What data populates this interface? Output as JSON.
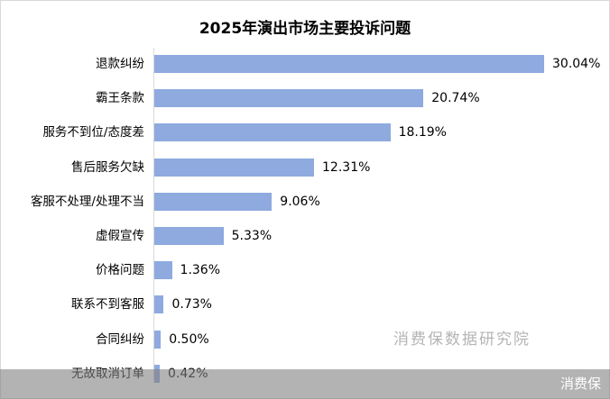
{
  "chart_data": {
    "type": "bar",
    "orientation": "horizontal",
    "title": "2025年演出市场主要投诉问题",
    "xlabel": "",
    "ylabel": "",
    "grid": false,
    "legend": null,
    "categories": [
      "退款纠纷",
      "霸王条款",
      "服务不到位/态度差",
      "售后服务欠缺",
      "客服不处理/处理不当",
      "虚假宣传",
      "价格问题",
      "联系不到客服",
      "合同纠纷",
      "无故取消订单"
    ],
    "values": [
      30.04,
      20.74,
      18.19,
      12.31,
      9.06,
      5.33,
      1.36,
      0.73,
      0.5,
      0.42
    ],
    "value_labels": [
      "30.04%",
      "20.74%",
      "18.19%",
      "12.31%",
      "9.06%",
      "5.33%",
      "1.36%",
      "0.73%",
      "0.50%",
      "0.42%"
    ],
    "unit": "%",
    "bar_color": "#8eaadf",
    "annotations": [
      "消费保数据研究院"
    ]
  },
  "watermark": "消费保数据研究院",
  "footer": {
    "brand": "消费保"
  }
}
